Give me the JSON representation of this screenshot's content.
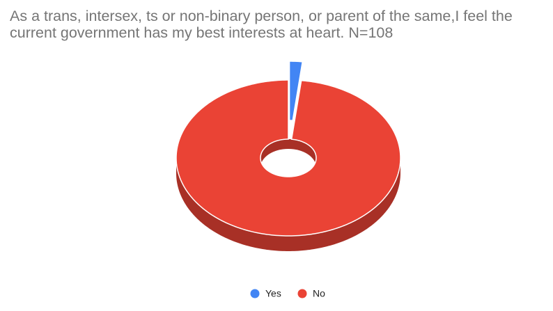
{
  "chart_data": {
    "type": "pie",
    "donut": true,
    "three_d": true,
    "title": "As a trans, intersex, ts or non-binary person, or parent of the same,I feel the current government has my best interests at heart.  N=108",
    "categories": [
      "Yes",
      "No"
    ],
    "values": [
      2,
      106
    ],
    "colors": [
      "#4285f4",
      "#ea4335"
    ],
    "legend": "bottom"
  }
}
